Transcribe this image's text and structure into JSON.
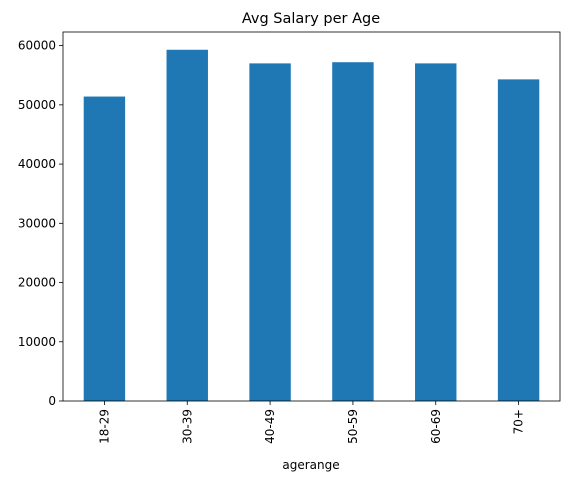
{
  "chart_data": {
    "type": "bar",
    "title": "Avg Salary per Age",
    "xlabel": "agerange",
    "ylabel": "",
    "categories": [
      "18-29",
      "30-39",
      "40-49",
      "50-59",
      "60-69",
      "70+"
    ],
    "values": [
      51400,
      59300,
      57000,
      57200,
      57000,
      54300
    ],
    "ylim": [
      0,
      62300
    ],
    "yticks": [
      0,
      10000,
      20000,
      30000,
      40000,
      50000,
      60000
    ],
    "ytick_labels": [
      "0",
      "10000",
      "20000",
      "30000",
      "40000",
      "50000",
      "60000"
    ],
    "bar_color": "#1f77b4",
    "grid": false,
    "legend": "none"
  }
}
